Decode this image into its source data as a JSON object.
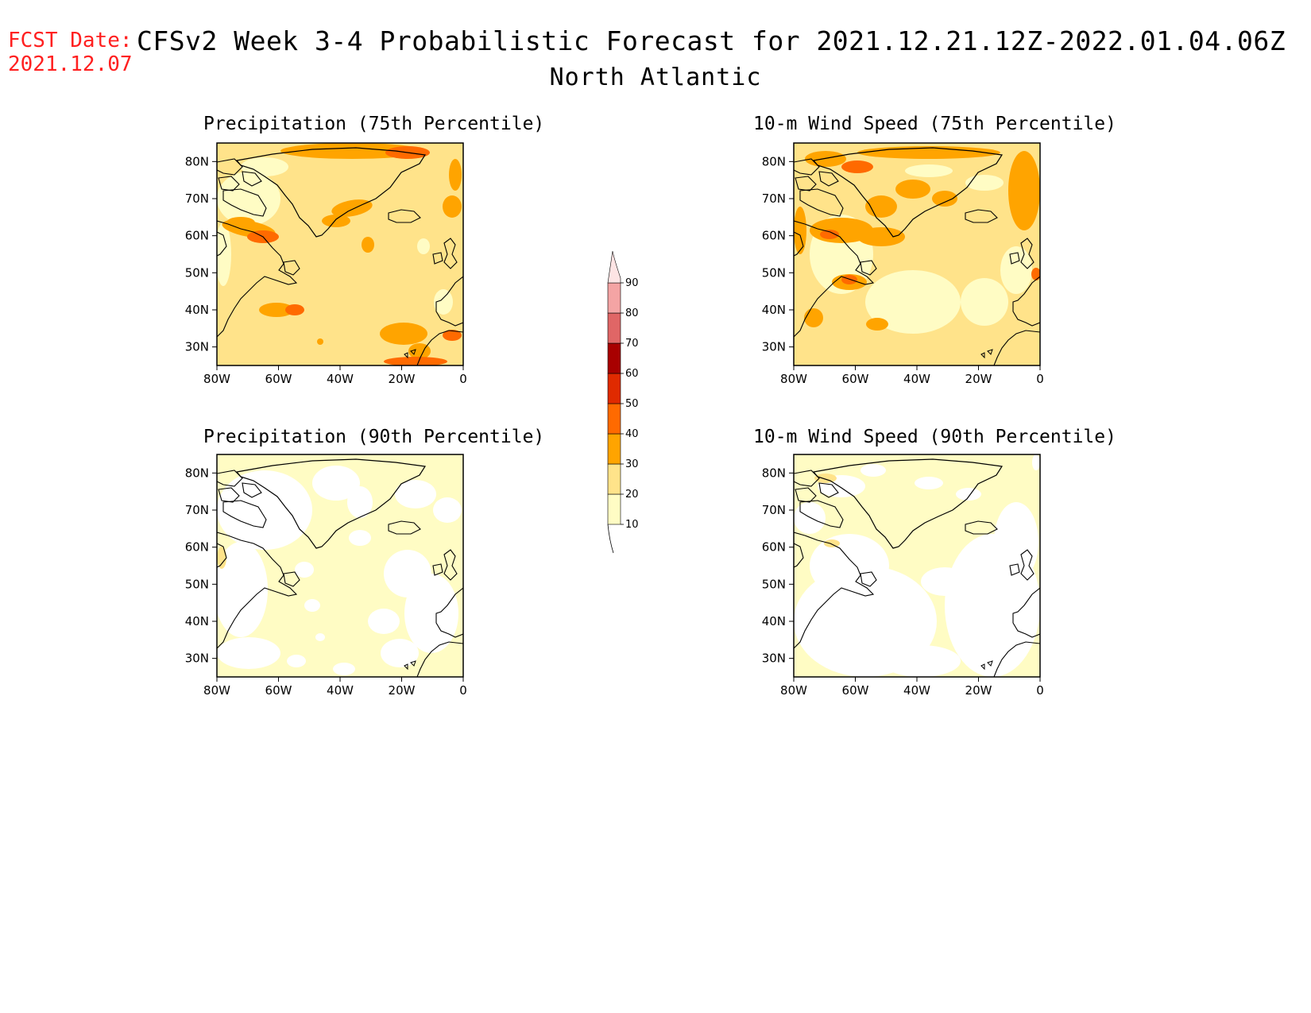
{
  "header": {
    "fcst_label": "FCST Date:",
    "fcst_date": "2021.12.07",
    "title": "CFSv2 Week 3-4 Probabilistic Forecast for 2021.12.21.12Z-2022.01.04.06Z",
    "subtitle": "North Atlantic"
  },
  "panels": [
    {
      "id": "p75",
      "title": "Precipitation (75th Percentile)"
    },
    {
      "id": "p90",
      "title": "Precipitation (90th Percentile)"
    },
    {
      "id": "w75",
      "title": "10-m Wind Speed (75th Percentile)"
    },
    {
      "id": "w90",
      "title": "10-m Wind Speed (90th Percentile)"
    }
  ],
  "axes": {
    "lat_labels": [
      "80N",
      "70N",
      "60N",
      "50N",
      "40N",
      "30N"
    ],
    "lon_labels": [
      "80W",
      "60W",
      "40W",
      "20W",
      "0"
    ]
  },
  "colorbar": {
    "levels": [
      "10",
      "20",
      "30",
      "40",
      "50",
      "60",
      "70",
      "80",
      "90"
    ],
    "colors": [
      "#fffcc4",
      "#ffe38a",
      "#ffa400",
      "#ff6a00",
      "#e02a00",
      "#a80000",
      "#e06666",
      "#f4a4a4",
      "#fde4e4"
    ]
  },
  "chart_data": {
    "type": "heatmap",
    "title": "CFSv2 Week 3-4 Probabilistic Forecast for 2021.12.21.12Z-2022.01.04.06Z",
    "region": "North Atlantic",
    "lon_range": [
      -80,
      0
    ],
    "lat_range": [
      25,
      85
    ],
    "levels": [
      10,
      20,
      30,
      40,
      50,
      60,
      70,
      80,
      90
    ]
  }
}
